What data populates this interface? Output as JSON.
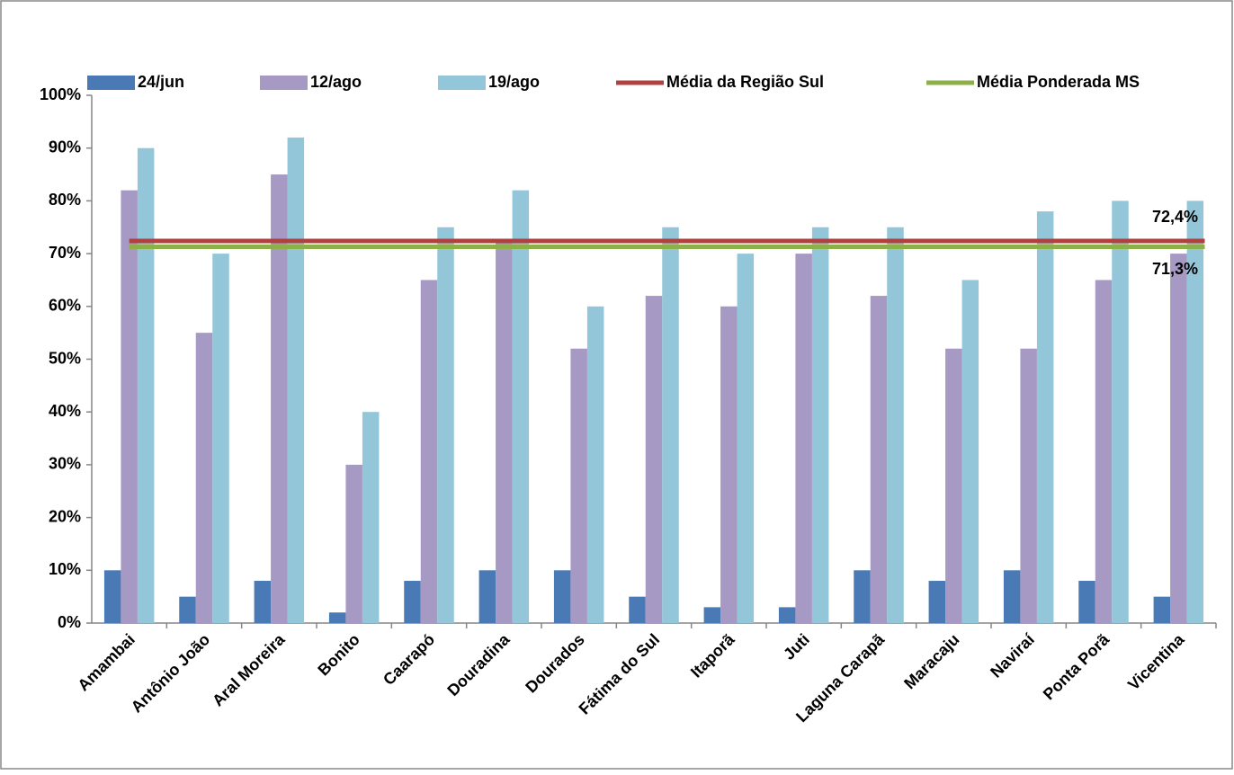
{
  "chart_data": {
    "type": "bar",
    "categories": [
      "Amambai",
      "Antônio João",
      "Aral Moreira",
      "Bonito",
      "Caarapó",
      "Douradina",
      "Dourados",
      "Fátima do Sul",
      "Itaporã",
      "Juti",
      "Laguna Carapã",
      "Maracaju",
      "Naviraí",
      "Ponta Porã",
      "Vicentina"
    ],
    "series": [
      {
        "name": "24/jun",
        "color": "#4a7ab5",
        "values": [
          10,
          5,
          8,
          2,
          8,
          10,
          10,
          5,
          3,
          3,
          10,
          8,
          10,
          8,
          5
        ]
      },
      {
        "name": "12/ago",
        "color": "#a699c4",
        "values": [
          82,
          55,
          85,
          30,
          65,
          72,
          52,
          62,
          60,
          70,
          62,
          52,
          52,
          65,
          70
        ]
      },
      {
        "name": "19/ago",
        "color": "#93c6d8",
        "values": [
          90,
          70,
          92,
          40,
          75,
          82,
          60,
          75,
          70,
          75,
          75,
          65,
          78,
          80,
          80
        ]
      },
      {
        "name": "Média da Região Sul",
        "color": "#b0413e",
        "kind": "line",
        "value": 72.4,
        "value_label": "72,4%"
      },
      {
        "name": "Média Ponderada MS",
        "color": "#8cb04a",
        "kind": "line",
        "value": 71.3,
        "value_label": "71,3%"
      }
    ],
    "ylim": [
      0,
      100
    ],
    "yticks": [
      {
        "value": 0,
        "label": "0%"
      },
      {
        "value": 10,
        "label": "10%"
      },
      {
        "value": 20,
        "label": "20%"
      },
      {
        "value": 30,
        "label": "30%"
      },
      {
        "value": 40,
        "label": "40%"
      },
      {
        "value": 50,
        "label": "50%"
      },
      {
        "value": 60,
        "label": "60%"
      },
      {
        "value": 70,
        "label": "70%"
      },
      {
        "value": 80,
        "label": "80%"
      },
      {
        "value": 90,
        "label": "90%"
      },
      {
        "value": 100,
        "label": "100%"
      }
    ],
    "grid": false,
    "legend": "top"
  }
}
